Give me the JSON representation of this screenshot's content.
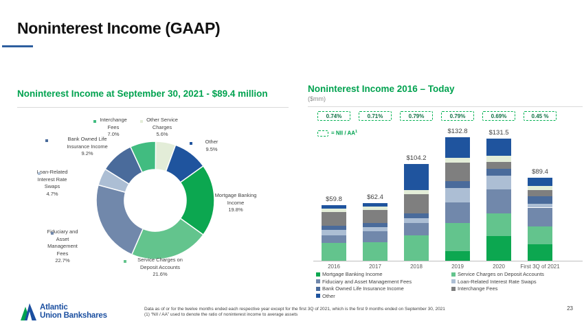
{
  "slide": {
    "title": "Noninterest Income (GAAP)",
    "page_number": "23",
    "footnote_line1": "Data as of or for the twelve months ended each respective year except for the first 3Q of 2021, which is the first 9 months ended on September 30, 2021",
    "footnote_line2": "(1) “NII / AA” used to denote the ratio of noninterest income to average assets",
    "logo": {
      "line1": "Atlantic",
      "line2": "Union Bankshares",
      "brand_blue": "#1b4fa0",
      "brand_green": "#00a24f"
    }
  },
  "donut_section": {
    "title": "Noninterest Income at September 30, 2021 - $89.4 million"
  },
  "bar_section": {
    "title": "Noninterest Income 2016 – Today",
    "subtitle": "($mm)",
    "ratio_legend_label": "= NII / AA",
    "ratio_legend_sup": "1"
  },
  "chart_data": [
    {
      "type": "pie",
      "donut": true,
      "title": "Noninterest Income at September 30, 2021 - $89.4 million",
      "total_label": "$89.4 million",
      "start_angle_deg": 0,
      "direction": "clockwise",
      "segments": [
        {
          "id": "other_service",
          "label": "Other Service Charges",
          "pct": 5.6,
          "color": "#e3edd8",
          "label_lines": [
            "Other Service",
            "Charges",
            "5.6%"
          ]
        },
        {
          "id": "other",
          "label": "Other",
          "pct": 9.5,
          "color": "#1f549e",
          "label_lines": [
            "Other",
            "9.5%"
          ]
        },
        {
          "id": "mortgage",
          "label": "Mortgage Banking Income",
          "pct": 19.8,
          "color": "#0ca750",
          "label_lines": [
            "Mortgage Banking",
            "Income",
            "19.8%"
          ]
        },
        {
          "id": "service",
          "label": "Service Charges on Deposit Accounts",
          "pct": 21.6,
          "color": "#63c48d",
          "label_lines": [
            "Service Charges on",
            "Deposit Accounts",
            "21.6%"
          ]
        },
        {
          "id": "fiduciary",
          "label": "Fiduciary and Asset Management Fees",
          "pct": 22.7,
          "color": "#7188ab",
          "label_lines": [
            "Fiduciary and",
            "Asset",
            "Management",
            "Fees",
            "22.7%"
          ]
        },
        {
          "id": "loan",
          "label": "Loan-Related Interest Rate Swaps",
          "pct": 4.7,
          "color": "#acbed4",
          "label_lines": [
            "Loan-Related",
            "Interest Rate",
            "Swaps",
            "4.7%"
          ]
        },
        {
          "id": "boli",
          "label": "Bank Owned Life Insurance Income",
          "pct": 9.2,
          "color": "#4a6b9b",
          "label_lines": [
            "Bank Owned Life",
            "Insurance Income",
            "9.2%"
          ]
        },
        {
          "id": "interchange",
          "label": "Interchange Fees",
          "pct": 7.0,
          "color": "#41bc80",
          "label_lines": [
            "Interchange",
            "Fees",
            "7.0%"
          ]
        }
      ]
    },
    {
      "type": "bar",
      "stacked": true,
      "title": "Noninterest Income 2016 – Today",
      "unit": "$mm",
      "ylim": [
        0,
        140
      ],
      "legend_position": "bottom",
      "categories": [
        "2016",
        "2017",
        "2018",
        "2019",
        "2020",
        "First 3Q of 2021"
      ],
      "totals": [
        59.8,
        62.4,
        104.2,
        132.8,
        131.5,
        89.4
      ],
      "totals_labels": [
        "$59.8",
        "$62.4",
        "$104.2",
        "$132.8",
        "$131.5",
        "$89.4"
      ],
      "nii_aa_ratios": [
        "0.74%",
        "0.71%",
        "0.79%",
        "0.79%",
        "0.69%",
        "0.45 %"
      ],
      "series": [
        {
          "name": "Mortgage Banking Income",
          "color": "#0ca750",
          "legend_col": 1,
          "values": [
            0,
            0,
            0,
            10.1,
            26.4,
            17.7
          ]
        },
        {
          "name": "Service Charges on Deposit Accounts",
          "color": "#63c48d",
          "legend_col": 2,
          "values": [
            19.2,
            20.3,
            27.1,
            30.8,
            24.4,
            19.3
          ]
        },
        {
          "name": "Fiduciary and Asset Management Fees",
          "color": "#7188ab",
          "legend_col": 1,
          "values": [
            8.1,
            11.8,
            13.3,
            22.2,
            26.4,
            20.3
          ]
        },
        {
          "name": "Loan-Related Interest Rate Swaps",
          "color": "#acbed4",
          "legend_col": 2,
          "values": [
            5.9,
            4.2,
            5.4,
            15.5,
            14.8,
            4.1
          ]
        },
        {
          "name": "Bank Owned Life Insurance Income",
          "color": "#4a6b9b",
          "legend_col": 1,
          "values": [
            4.2,
            4.4,
            4.9,
            7.4,
            7.4,
            8.2
          ]
        },
        {
          "name": "Interchange Fees",
          "color": "#7f7f7f",
          "legend_col": 2,
          "values": [
            15.0,
            14.3,
            20.7,
            19.7,
            7.4,
            6.3
          ]
        },
        {
          "name": "Other Service Charges",
          "color": "#e3edd8",
          "legend_col": 0,
          "values": [
            3.7,
            3.7,
            4.4,
            4.9,
            6.2,
            5.0
          ]
        },
        {
          "name": "Other",
          "color": "#1f549e",
          "legend_col": 1,
          "values": [
            3.7,
            3.7,
            28.4,
            22.2,
            18.5,
            8.5
          ]
        }
      ]
    }
  ],
  "colors": {
    "heading_green": "#00a24f",
    "dashed_box_green": "#00b050",
    "title_underline_blue": "#2d5e9e",
    "axis_gray": "#bfbfbf"
  }
}
